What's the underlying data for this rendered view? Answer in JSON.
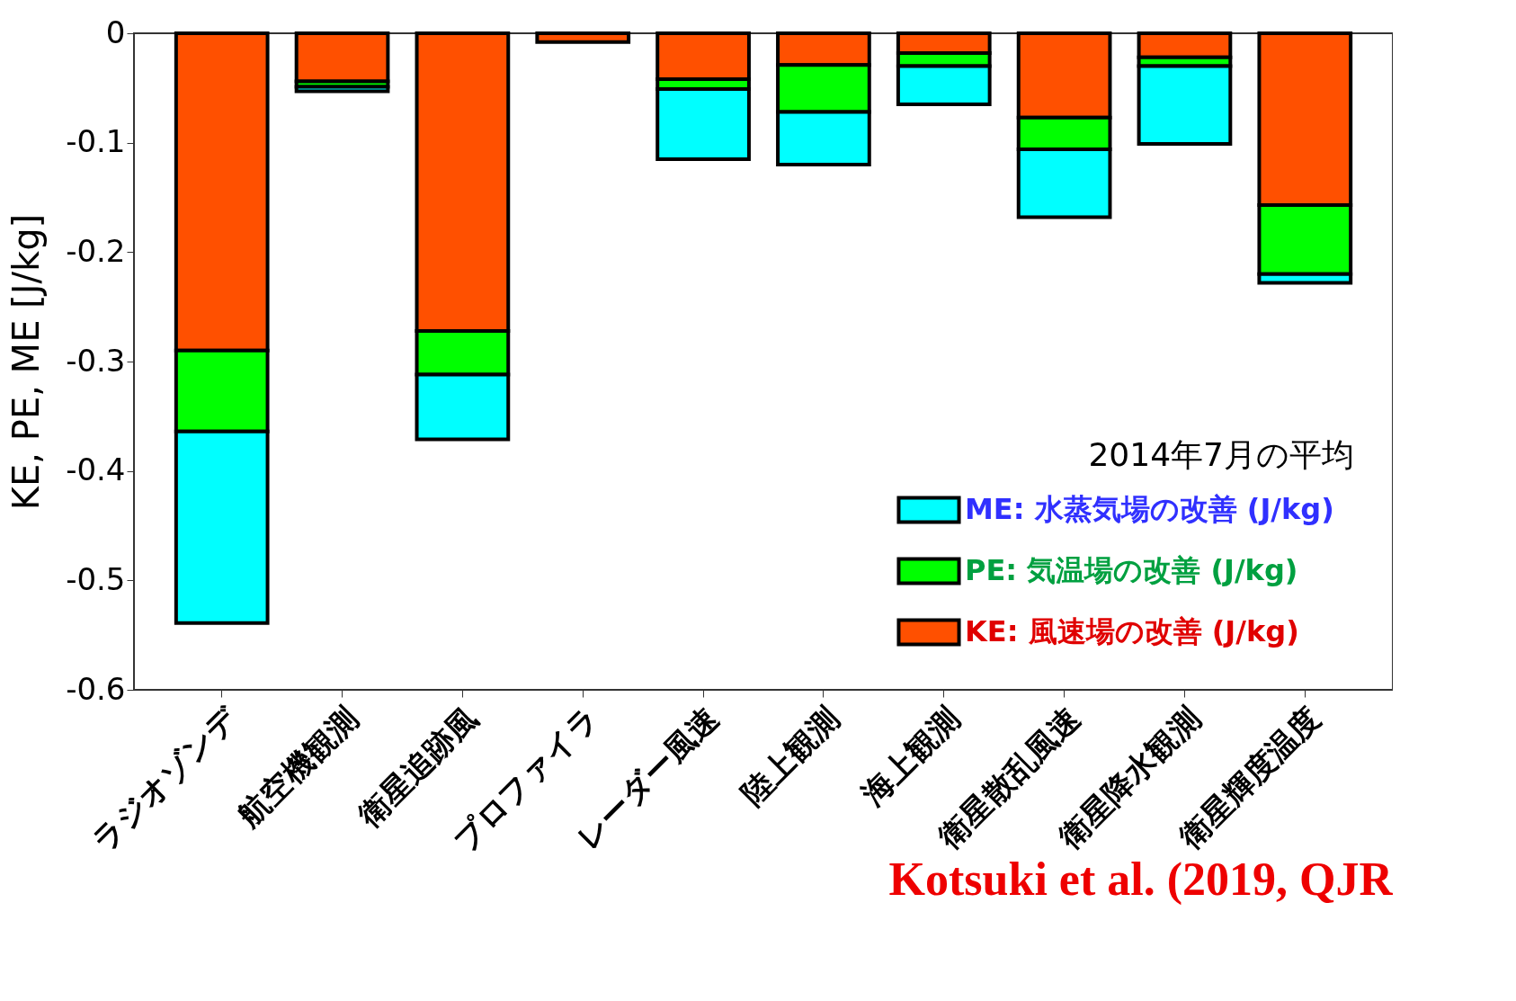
{
  "chart_data": {
    "type": "bar",
    "stacked": true,
    "categories": [
      "ラジオゾンデ",
      "航空機観測",
      "衛星追跡風",
      "プロファイラ",
      "レーダー風速",
      "陸上観測",
      "海上観測",
      "衛星散乱風速",
      "衛星降水観測",
      "衛星輝度温度"
    ],
    "series": [
      {
        "name": "KE:    風速場の改善 (J/kg)",
        "color": "#ff5000",
        "values": [
          -0.29,
          -0.044,
          -0.272,
          -0.008,
          -0.042,
          -0.029,
          -0.018,
          -0.077,
          -0.022,
          -0.157
        ]
      },
      {
        "name": "PE:    気温場の改善 (J/kg)",
        "color": "#00ff00",
        "values": [
          -0.074,
          -0.005,
          -0.04,
          null,
          -0.009,
          -0.043,
          -0.012,
          -0.029,
          -0.008,
          -0.063
        ]
      },
      {
        "name": "ME:   水蒸気場の改善 (J/kg)",
        "color": "#00ffff",
        "values": [
          -0.175,
          -0.004,
          -0.059,
          null,
          -0.064,
          -0.048,
          -0.035,
          -0.062,
          -0.071,
          -0.008
        ]
      }
    ],
    "ylabel": "KE, PE, ME [J/kg]",
    "ylim": [
      -0.6,
      0
    ],
    "yticks": [
      -0.6,
      -0.5,
      -0.4,
      -0.3,
      -0.2,
      -0.1,
      0
    ],
    "legend_title": "2014年7月の平均",
    "legend": "bottom right",
    "annotations": [
      "Kotsuki et al. (2019, QJR"
    ]
  }
}
